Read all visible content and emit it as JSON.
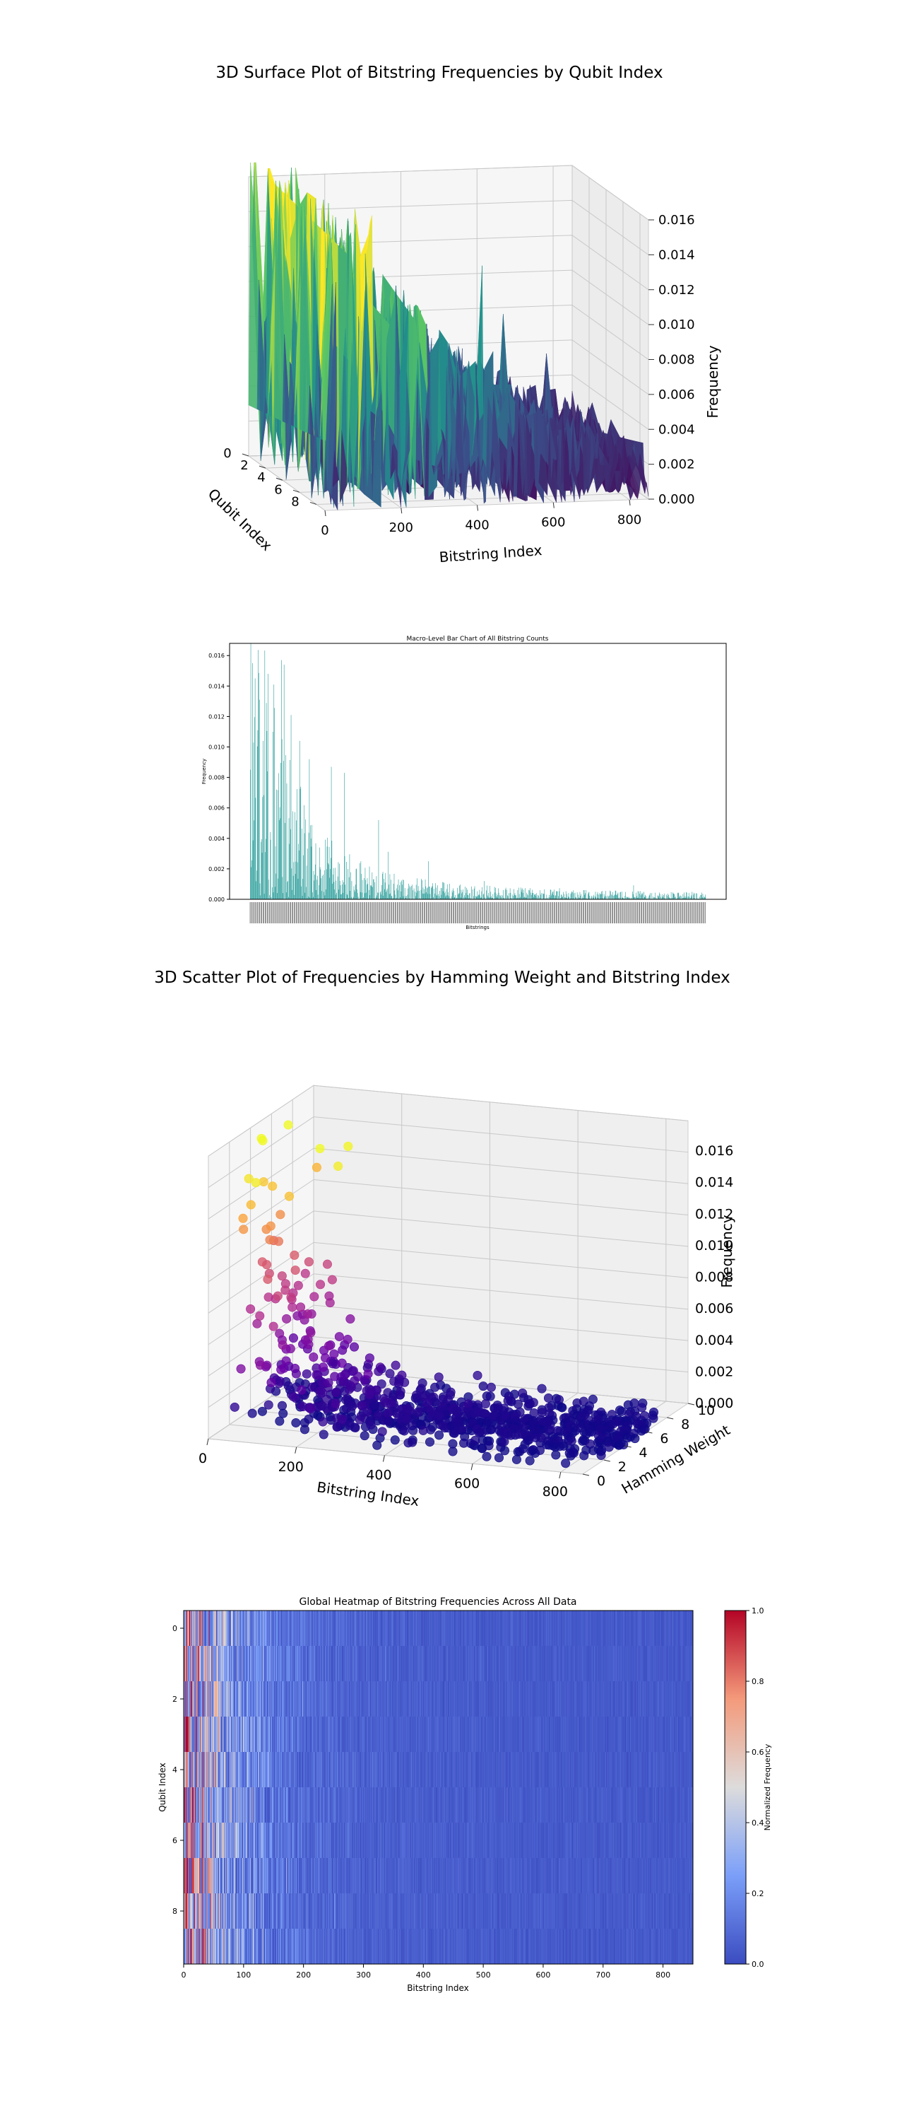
{
  "chart_data": [
    {
      "type": "surface3d",
      "title": "3D Surface Plot of Bitstring Frequencies by Qubit Index",
      "xlabel": "Bitstring Index",
      "ylabel": "Qubit Index",
      "zlabel": "Frequency",
      "x_ticks": [
        "0",
        "200",
        "400",
        "600",
        "800"
      ],
      "y_ticks": [
        "0",
        "2",
        "4",
        "6",
        "8"
      ],
      "z_ticks": [
        "0.000",
        "0.002",
        "0.004",
        "0.006",
        "0.008",
        "0.010",
        "0.012",
        "0.014",
        "0.016"
      ],
      "xlim": [
        0,
        850
      ],
      "ylim": [
        0,
        9
      ],
      "zlim": [
        0,
        0.016
      ],
      "colormap": "viridis"
    },
    {
      "type": "bar",
      "title": "Macro-Level Bar Chart of All Bitstring Counts",
      "xlabel": "Bitstrings",
      "ylabel": "Frequency",
      "y_ticks": [
        "0.000",
        "0.002",
        "0.004",
        "0.006",
        "0.008",
        "0.010",
        "0.012",
        "0.014",
        "0.016"
      ],
      "ylim": [
        0,
        0.0168
      ],
      "n_bars": 850,
      "bar_color": "#2a9d9a",
      "peak_values": [
        {
          "index": 4,
          "value": 0.0155
        },
        {
          "index": 9,
          "value": 0.0145
        },
        {
          "index": 17,
          "value": 0.0131
        },
        {
          "index": 33,
          "value": 0.0148
        },
        {
          "index": 44,
          "value": 0.0141
        },
        {
          "index": 58,
          "value": 0.0157
        },
        {
          "index": 63,
          "value": 0.0154
        },
        {
          "index": 76,
          "value": 0.0121
        },
        {
          "index": 92,
          "value": 0.0104
        },
        {
          "index": 110,
          "value": 0.0092
        },
        {
          "index": 151,
          "value": 0.0087
        },
        {
          "index": 175,
          "value": 0.0083
        },
        {
          "index": 239,
          "value": 0.0052
        },
        {
          "index": 332,
          "value": 0.0025
        },
        {
          "index": 436,
          "value": 0.0012
        }
      ]
    },
    {
      "type": "scatter3d",
      "title": "3D Scatter Plot of Frequencies by Hamming Weight and Bitstring Index",
      "xlabel": "Bitstring Index",
      "ylabel": "Hamming Weight",
      "zlabel": "Frequency",
      "x_ticks": [
        "0",
        "200",
        "400",
        "600",
        "800"
      ],
      "y_ticks": [
        "0",
        "2",
        "4",
        "6",
        "8",
        "10"
      ],
      "z_ticks": [
        "0.000",
        "0.002",
        "0.004",
        "0.006",
        "0.008",
        "0.010",
        "0.012",
        "0.014",
        "0.016"
      ],
      "xlim": [
        0,
        850
      ],
      "ylim": [
        0,
        10
      ],
      "zlim": [
        0,
        0.016
      ],
      "colormap": "plasma"
    },
    {
      "type": "heatmap",
      "title": "Global Heatmap of Bitstring Frequencies Across All Data",
      "xlabel": "Bitstring Index",
      "ylabel": "Qubit Index",
      "colorbar_label": "Normalized Frequency",
      "x_ticks": [
        "0",
        "100",
        "200",
        "300",
        "400",
        "500",
        "600",
        "700",
        "800"
      ],
      "y_ticks": [
        "0",
        "2",
        "4",
        "6",
        "8"
      ],
      "colorbar_ticks": [
        "0.0",
        "0.2",
        "0.4",
        "0.6",
        "0.8",
        "1.0"
      ],
      "xlim": [
        0,
        850
      ],
      "ylim": [
        -0.5,
        9.5
      ],
      "colormap": "coolwarm"
    }
  ]
}
